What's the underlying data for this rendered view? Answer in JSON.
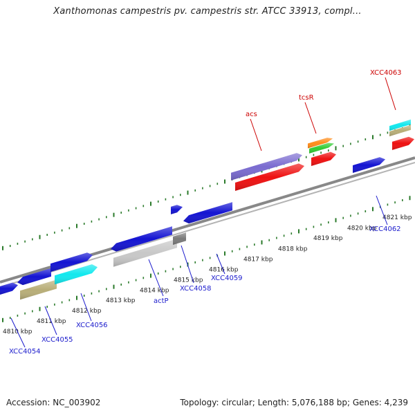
{
  "header": {
    "title": "Xanthomonas campestris pv. campestris str. ATCC 33913, compl..."
  },
  "footer": {
    "accession": "Accession: NC_003902",
    "stats": "Topology: circular; Length: 5,076,188 bp; Genes: 4,239"
  },
  "colors": {
    "backbone": "#888888",
    "tick": "#2a7a2a",
    "blue_gene": "#1414d2",
    "red_gene": "#ee1111",
    "purple_gene": "#7a6bd0",
    "cyan_gene": "#12e8ee",
    "khaki_gene": "#b8ae78",
    "gray_gene": "#c8c8c8",
    "dark_gray_gene": "#7a7a7a",
    "orange_gene": "#ff8c1a",
    "green_gene": "#33cc33"
  },
  "scale": {
    "tick_labels": [
      "4810 kbp",
      "4811 kbp",
      "4812 kbp",
      "4813 kbp",
      "4814 kbp",
      "4815 kbp",
      "4816 kbp",
      "4817 kbp",
      "4818 kbp",
      "4819 kbp",
      "4820 kbp",
      "4821 kbp"
    ]
  },
  "gene_labels": {
    "upper": [
      {
        "name": "acs",
        "color": "red"
      },
      {
        "name": "tcsR",
        "color": "red"
      },
      {
        "name": "XCC4063",
        "color": "red"
      }
    ],
    "lower": [
      {
        "name": "XCC4054",
        "color": "blue"
      },
      {
        "name": "XCC4055",
        "color": "blue"
      },
      {
        "name": "XCC4056",
        "color": "blue"
      },
      {
        "name": "actP",
        "color": "blue"
      },
      {
        "name": "XCC4058",
        "color": "blue"
      },
      {
        "name": "XCC4059",
        "color": "blue"
      },
      {
        "name": "XCC4062",
        "color": "blue"
      }
    ]
  }
}
